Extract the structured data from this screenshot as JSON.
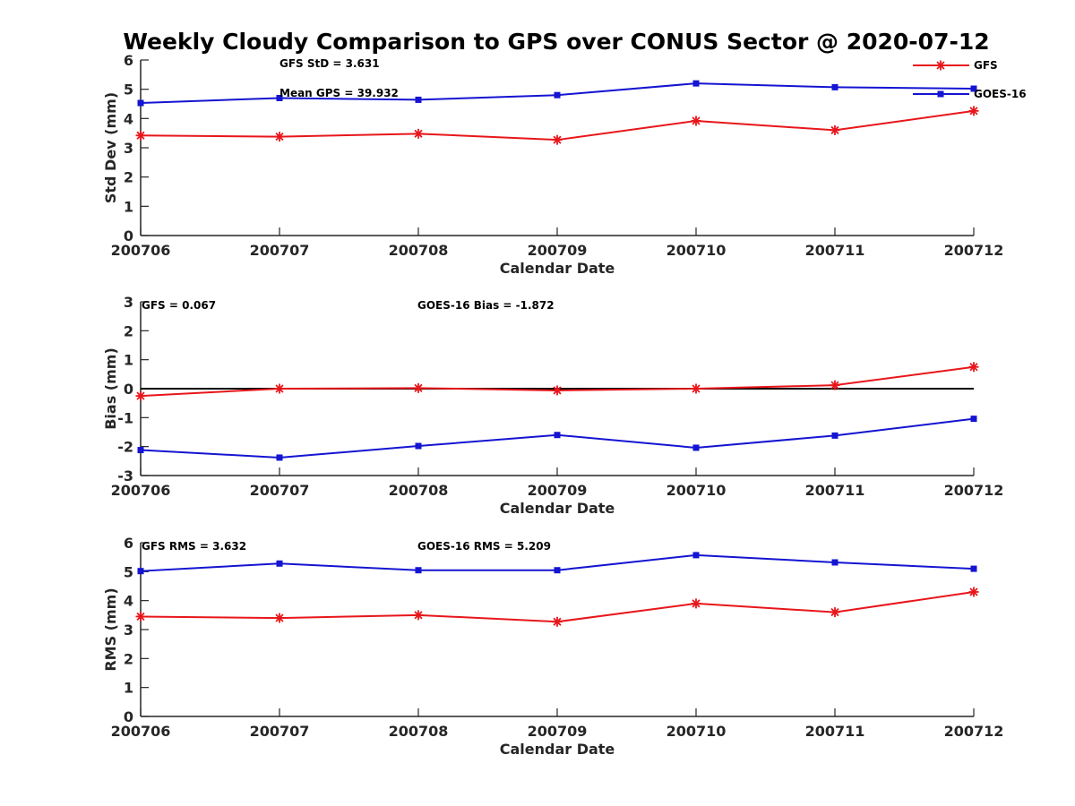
{
  "title": "Weekly Cloudy Comparison to GPS over CONUS Sector @ 2020-07-12",
  "chart_data": [
    {
      "type": "line",
      "panel": "std",
      "categories": [
        "200706",
        "200707",
        "200708",
        "200709",
        "200710",
        "200711",
        "200712"
      ],
      "xlabel": "Calendar Date",
      "ylabel": "Std Dev (mm)",
      "ylim": [
        0,
        6
      ],
      "yticks": [
        0,
        1,
        2,
        3,
        4,
        5,
        6
      ],
      "grid": false,
      "legend": "top-right",
      "zero_line": false,
      "series": [
        {
          "name": "GFS",
          "color": "#e8161b",
          "marker": "asterisk",
          "values": [
            3.42,
            3.38,
            3.48,
            3.27,
            3.92,
            3.6,
            4.26
          ]
        },
        {
          "name": "GOES-16",
          "color": "#1414d2",
          "marker": "square",
          "values": [
            4.53,
            4.7,
            4.64,
            4.8,
            5.2,
            5.07,
            5.02
          ]
        }
      ],
      "annotations": [
        "GFS StD = 3.631",
        "Mean GPS = 39.932"
      ]
    },
    {
      "type": "line",
      "panel": "bias",
      "categories": [
        "200706",
        "200707",
        "200708",
        "200709",
        "200710",
        "200711",
        "200712"
      ],
      "xlabel": "Calendar Date",
      "ylabel": "Bias (mm)",
      "ylim": [
        -3,
        3
      ],
      "yticks": [
        -3,
        -2,
        -1,
        0,
        1,
        2,
        3
      ],
      "grid": false,
      "zero_line": true,
      "series": [
        {
          "color": "#e8161b",
          "marker": "asterisk",
          "values": [
            -0.25,
            0.0,
            0.02,
            -0.06,
            0.0,
            0.12,
            0.75
          ]
        },
        {
          "color": "#1414d2",
          "marker": "square",
          "values": [
            -2.12,
            -2.38,
            -1.98,
            -1.6,
            -2.04,
            -1.62,
            -1.04
          ]
        }
      ],
      "annotations": [
        "GFS = 0.067",
        "GOES-16 Bias  = -1.872"
      ]
    },
    {
      "type": "line",
      "panel": "rms",
      "categories": [
        "200706",
        "200707",
        "200708",
        "200709",
        "200710",
        "200711",
        "200712"
      ],
      "xlabel": "Calendar Date",
      "ylabel": "RMS (mm)",
      "ylim": [
        0,
        6
      ],
      "yticks": [
        0,
        1,
        2,
        3,
        4,
        5,
        6
      ],
      "grid": false,
      "zero_line": false,
      "series": [
        {
          "color": "#e8161b",
          "marker": "asterisk",
          "values": [
            3.45,
            3.4,
            3.5,
            3.27,
            3.9,
            3.6,
            4.3
          ]
        },
        {
          "color": "#1414d2",
          "marker": "square",
          "values": [
            5.02,
            5.28,
            5.05,
            5.05,
            5.57,
            5.32,
            5.1
          ]
        }
      ],
      "annotations": [
        "GFS RMS = 3.632",
        "GOES-16 RMS = 5.209"
      ]
    }
  ]
}
